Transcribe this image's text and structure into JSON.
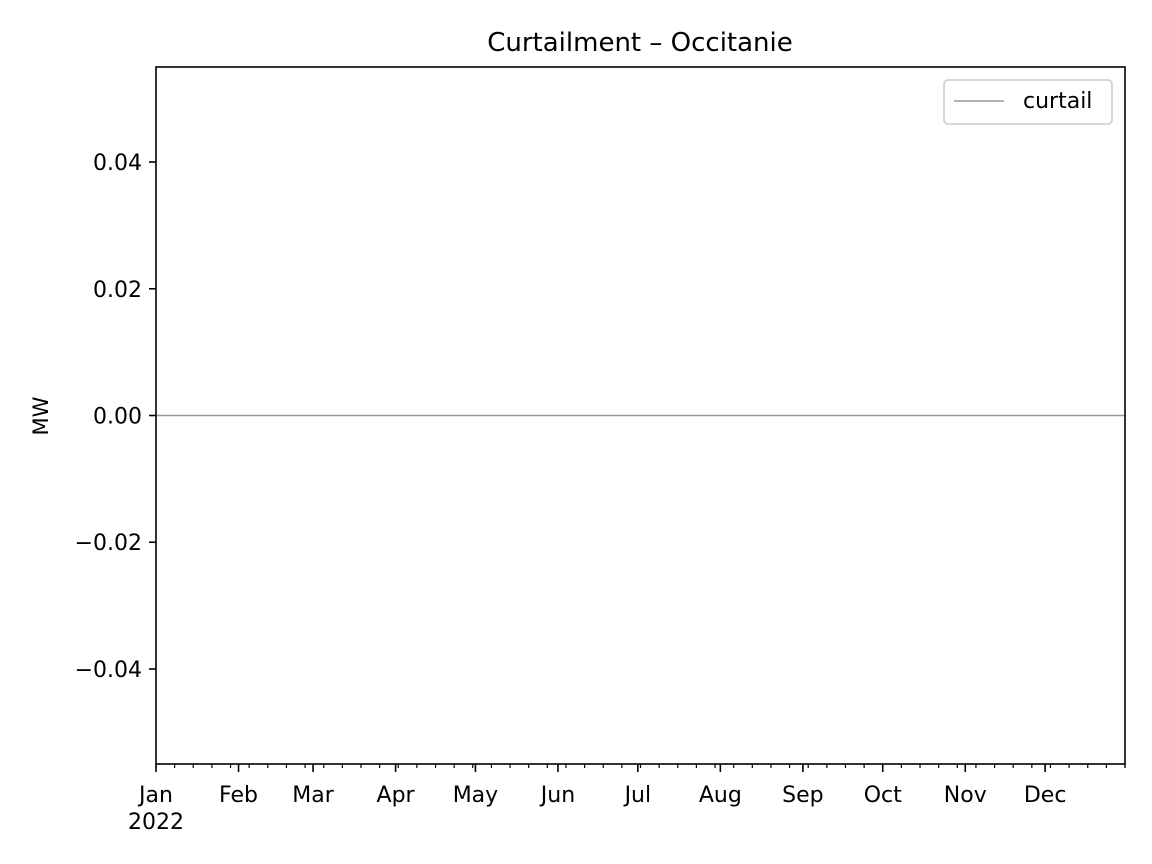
{
  "chart_data": {
    "type": "line",
    "title": "Curtailment – Occitanie",
    "xlabel": "",
    "ylabel": "MW",
    "x_tick_labels": [
      "Jan",
      "Feb",
      "Mar",
      "Apr",
      "May",
      "Jun",
      "Jul",
      "Aug",
      "Sep",
      "Oct",
      "Nov",
      "Dec"
    ],
    "x_year_label": "2022",
    "x_start": "2022-01-01",
    "x_end": "2022-12-31",
    "ylim": [
      -0.055,
      0.055
    ],
    "y_ticks": [
      -0.04,
      -0.02,
      0.0,
      0.02,
      0.04
    ],
    "y_tick_labels": [
      "−0.04",
      "−0.02",
      "0.00",
      "0.02",
      "0.04"
    ],
    "series": [
      {
        "name": "curtail",
        "color": "#999999",
        "x": [
          "2022-01-01",
          "2022-12-31"
        ],
        "y": [
          0,
          0
        ]
      }
    ],
    "legend": {
      "position": "top-right",
      "entries": [
        "curtail"
      ]
    },
    "grid": false
  }
}
